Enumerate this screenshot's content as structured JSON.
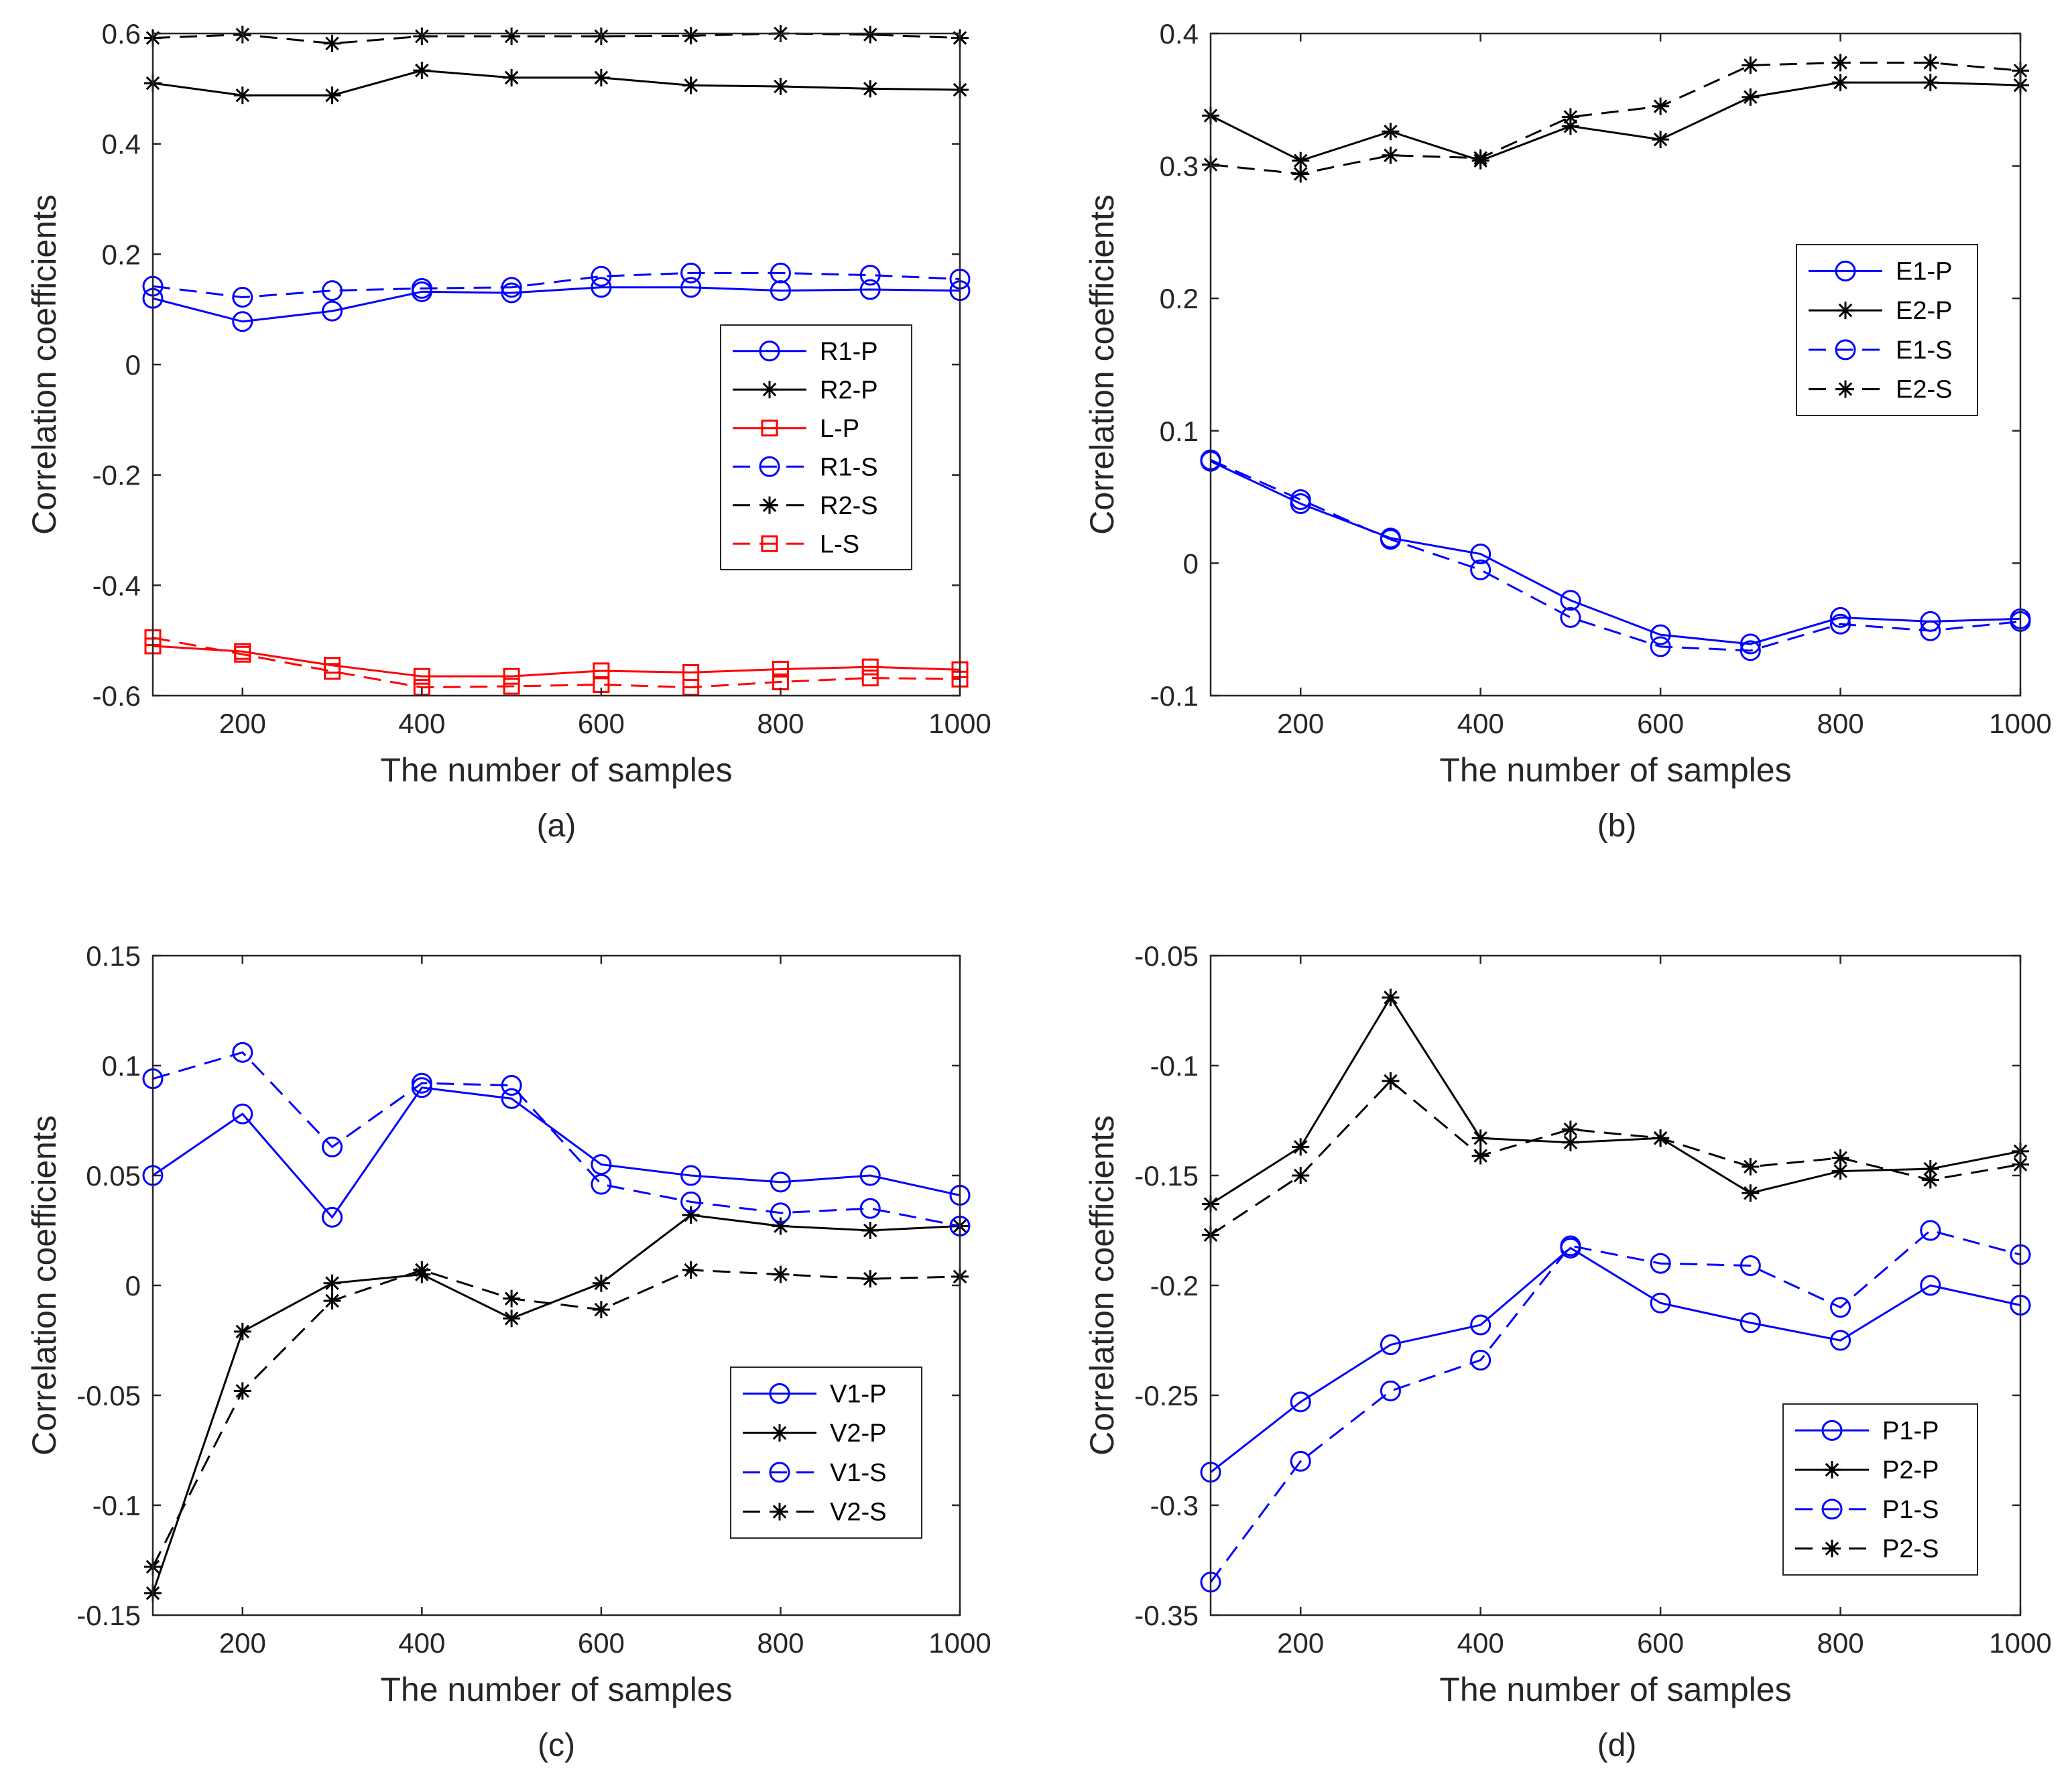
{
  "chart_data": [
    {
      "panel": "(a)",
      "type": "line",
      "xlabel": "The number of samples",
      "ylabel": "Correlation coefficients",
      "x": [
        100,
        200,
        300,
        400,
        500,
        600,
        700,
        800,
        900,
        1000
      ],
      "xlim": [
        100,
        1000
      ],
      "ylim": [
        -0.6,
        0.6
      ],
      "xticks": [
        200,
        400,
        600,
        800,
        1000
      ],
      "yticks": [
        -0.6,
        -0.4,
        -0.2,
        0,
        0.2,
        0.4,
        0.6
      ],
      "xtick_labels": [
        "200",
        "400",
        "600",
        "800",
        "1000"
      ],
      "ytick_labels": [
        "-0.6",
        "-0.4",
        "-0.2",
        "0",
        "0.2",
        "0.4",
        "0.6"
      ],
      "legend_position": "center-right",
      "series": [
        {
          "name": "R1-P",
          "color": "#0000ff",
          "dash": "solid",
          "marker": "circle",
          "values": [
            0.12,
            0.078,
            0.097,
            0.132,
            0.13,
            0.14,
            0.14,
            0.134,
            0.136,
            0.134
          ]
        },
        {
          "name": "R2-P",
          "color": "#000000",
          "dash": "solid",
          "marker": "asterisk",
          "values": [
            0.51,
            0.488,
            0.488,
            0.533,
            0.52,
            0.52,
            0.506,
            0.504,
            0.5,
            0.498
          ]
        },
        {
          "name": "L-P",
          "color": "#ff0000",
          "dash": "solid",
          "marker": "square",
          "values": [
            -0.51,
            -0.52,
            -0.545,
            -0.565,
            -0.565,
            -0.555,
            -0.558,
            -0.552,
            -0.548,
            -0.553
          ]
        },
        {
          "name": "R1-S",
          "color": "#0000ff",
          "dash": "dashed",
          "marker": "circle",
          "values": [
            0.142,
            0.122,
            0.134,
            0.138,
            0.14,
            0.16,
            0.166,
            0.166,
            0.162,
            0.155
          ]
        },
        {
          "name": "R2-S",
          "color": "#000000",
          "dash": "dashed",
          "marker": "asterisk",
          "values": [
            0.592,
            0.598,
            0.582,
            0.595,
            0.595,
            0.595,
            0.596,
            0.6,
            0.598,
            0.592
          ]
        },
        {
          "name": "L-S",
          "color": "#ff0000",
          "dash": "dashed",
          "marker": "square",
          "values": [
            -0.495,
            -0.525,
            -0.556,
            -0.585,
            -0.583,
            -0.58,
            -0.585,
            -0.575,
            -0.568,
            -0.57
          ]
        }
      ]
    },
    {
      "panel": "(b)",
      "type": "line",
      "xlabel": "The number of samples",
      "ylabel": "Correlation coefficients",
      "x": [
        100,
        200,
        300,
        400,
        500,
        600,
        700,
        800,
        900,
        1000
      ],
      "xlim": [
        100,
        1000
      ],
      "ylim": [
        -0.1,
        0.4
      ],
      "xticks": [
        200,
        400,
        600,
        800,
        1000
      ],
      "yticks": [
        -0.1,
        0,
        0.1,
        0.2,
        0.3,
        0.4
      ],
      "xtick_labels": [
        "200",
        "400",
        "600",
        "800",
        "1000"
      ],
      "ytick_labels": [
        "-0.1",
        "0",
        "0.1",
        "0.2",
        "0.3",
        "0.4"
      ],
      "legend_position": "center-right",
      "series": [
        {
          "name": "E1-P",
          "color": "#0000ff",
          "dash": "solid",
          "marker": "circle",
          "values": [
            0.077,
            0.045,
            0.019,
            0.007,
            -0.028,
            -0.054,
            -0.061,
            -0.041,
            -0.044,
            -0.042
          ]
        },
        {
          "name": "E2-P",
          "color": "#000000",
          "dash": "solid",
          "marker": "asterisk",
          "values": [
            0.338,
            0.304,
            0.326,
            0.304,
            0.33,
            0.32,
            0.352,
            0.363,
            0.363,
            0.361
          ]
        },
        {
          "name": "E1-S",
          "color": "#0000ff",
          "dash": "dashed",
          "marker": "circle",
          "values": [
            0.078,
            0.048,
            0.018,
            -0.005,
            -0.041,
            -0.063,
            -0.066,
            -0.046,
            -0.051,
            -0.044
          ]
        },
        {
          "name": "E2-S",
          "color": "#000000",
          "dash": "dashed",
          "marker": "asterisk",
          "values": [
            0.301,
            0.294,
            0.308,
            0.306,
            0.337,
            0.345,
            0.376,
            0.378,
            0.378,
            0.372
          ]
        }
      ]
    },
    {
      "panel": "(c)",
      "type": "line",
      "xlabel": "The number of samples",
      "ylabel": "Correlation coefficients",
      "x": [
        100,
        200,
        300,
        400,
        500,
        600,
        700,
        800,
        900,
        1000
      ],
      "xlim": [
        100,
        1000
      ],
      "ylim": [
        -0.15,
        0.15
      ],
      "xticks": [
        200,
        400,
        600,
        800,
        1000
      ],
      "yticks": [
        -0.15,
        -0.1,
        -0.05,
        0,
        0.05,
        0.1,
        0.15
      ],
      "xtick_labels": [
        "200",
        "400",
        "600",
        "800",
        "1000"
      ],
      "ytick_labels": [
        "-0.15",
        "-0.1",
        "-0.05",
        "0",
        "0.05",
        "0.1",
        "0.15"
      ],
      "legend_position": "bottom-right",
      "series": [
        {
          "name": "V1-P",
          "color": "#0000ff",
          "dash": "solid",
          "marker": "circle",
          "values": [
            0.05,
            0.078,
            0.031,
            0.09,
            0.085,
            0.055,
            0.05,
            0.047,
            0.05,
            0.041
          ]
        },
        {
          "name": "V2-P",
          "color": "#000000",
          "dash": "solid",
          "marker": "asterisk",
          "values": [
            -0.14,
            -0.021,
            0.001,
            0.005,
            -0.015,
            0.001,
            0.032,
            0.027,
            0.025,
            0.027
          ]
        },
        {
          "name": "V1-S",
          "color": "#0000ff",
          "dash": "dashed",
          "marker": "circle",
          "values": [
            0.094,
            0.106,
            0.063,
            0.092,
            0.091,
            0.046,
            0.038,
            0.033,
            0.035,
            0.027
          ]
        },
        {
          "name": "V2-S",
          "color": "#000000",
          "dash": "dashed",
          "marker": "asterisk",
          "values": [
            -0.128,
            -0.048,
            -0.007,
            0.007,
            -0.006,
            -0.011,
            0.007,
            0.005,
            0.003,
            0.004
          ]
        }
      ]
    },
    {
      "panel": "(d)",
      "type": "line",
      "xlabel": "The number of samples",
      "ylabel": "Correlation coefficients",
      "x": [
        100,
        200,
        300,
        400,
        500,
        600,
        700,
        800,
        900,
        1000
      ],
      "xlim": [
        100,
        1000
      ],
      "ylim": [
        -0.35,
        -0.05
      ],
      "xticks": [
        200,
        400,
        600,
        800,
        1000
      ],
      "yticks": [
        -0.35,
        -0.3,
        -0.25,
        -0.2,
        -0.15,
        -0.1,
        -0.05
      ],
      "xtick_labels": [
        "200",
        "400",
        "600",
        "800",
        "1000"
      ],
      "ytick_labels": [
        "-0.35",
        "-0.3",
        "-0.25",
        "-0.2",
        "-0.15",
        "-0.1",
        "-0.05"
      ],
      "legend_position": "bottom-right",
      "series": [
        {
          "name": "P1-P",
          "color": "#0000ff",
          "dash": "solid",
          "marker": "circle",
          "values": [
            -0.285,
            -0.253,
            -0.227,
            -0.218,
            -0.183,
            -0.208,
            -0.217,
            -0.225,
            -0.2,
            -0.209
          ]
        },
        {
          "name": "P2-P",
          "color": "#000000",
          "dash": "solid",
          "marker": "asterisk",
          "values": [
            -0.163,
            -0.137,
            -0.069,
            -0.133,
            -0.135,
            -0.133,
            -0.158,
            -0.148,
            -0.147,
            -0.139
          ]
        },
        {
          "name": "P1-S",
          "color": "#0000ff",
          "dash": "dashed",
          "marker": "circle",
          "values": [
            -0.335,
            -0.28,
            -0.248,
            -0.234,
            -0.182,
            -0.19,
            -0.191,
            -0.21,
            -0.175,
            -0.186
          ]
        },
        {
          "name": "P2-S",
          "color": "#000000",
          "dash": "dashed",
          "marker": "asterisk",
          "values": [
            -0.177,
            -0.15,
            -0.107,
            -0.141,
            -0.129,
            -0.133,
            -0.146,
            -0.142,
            -0.152,
            -0.145
          ]
        }
      ]
    }
  ]
}
